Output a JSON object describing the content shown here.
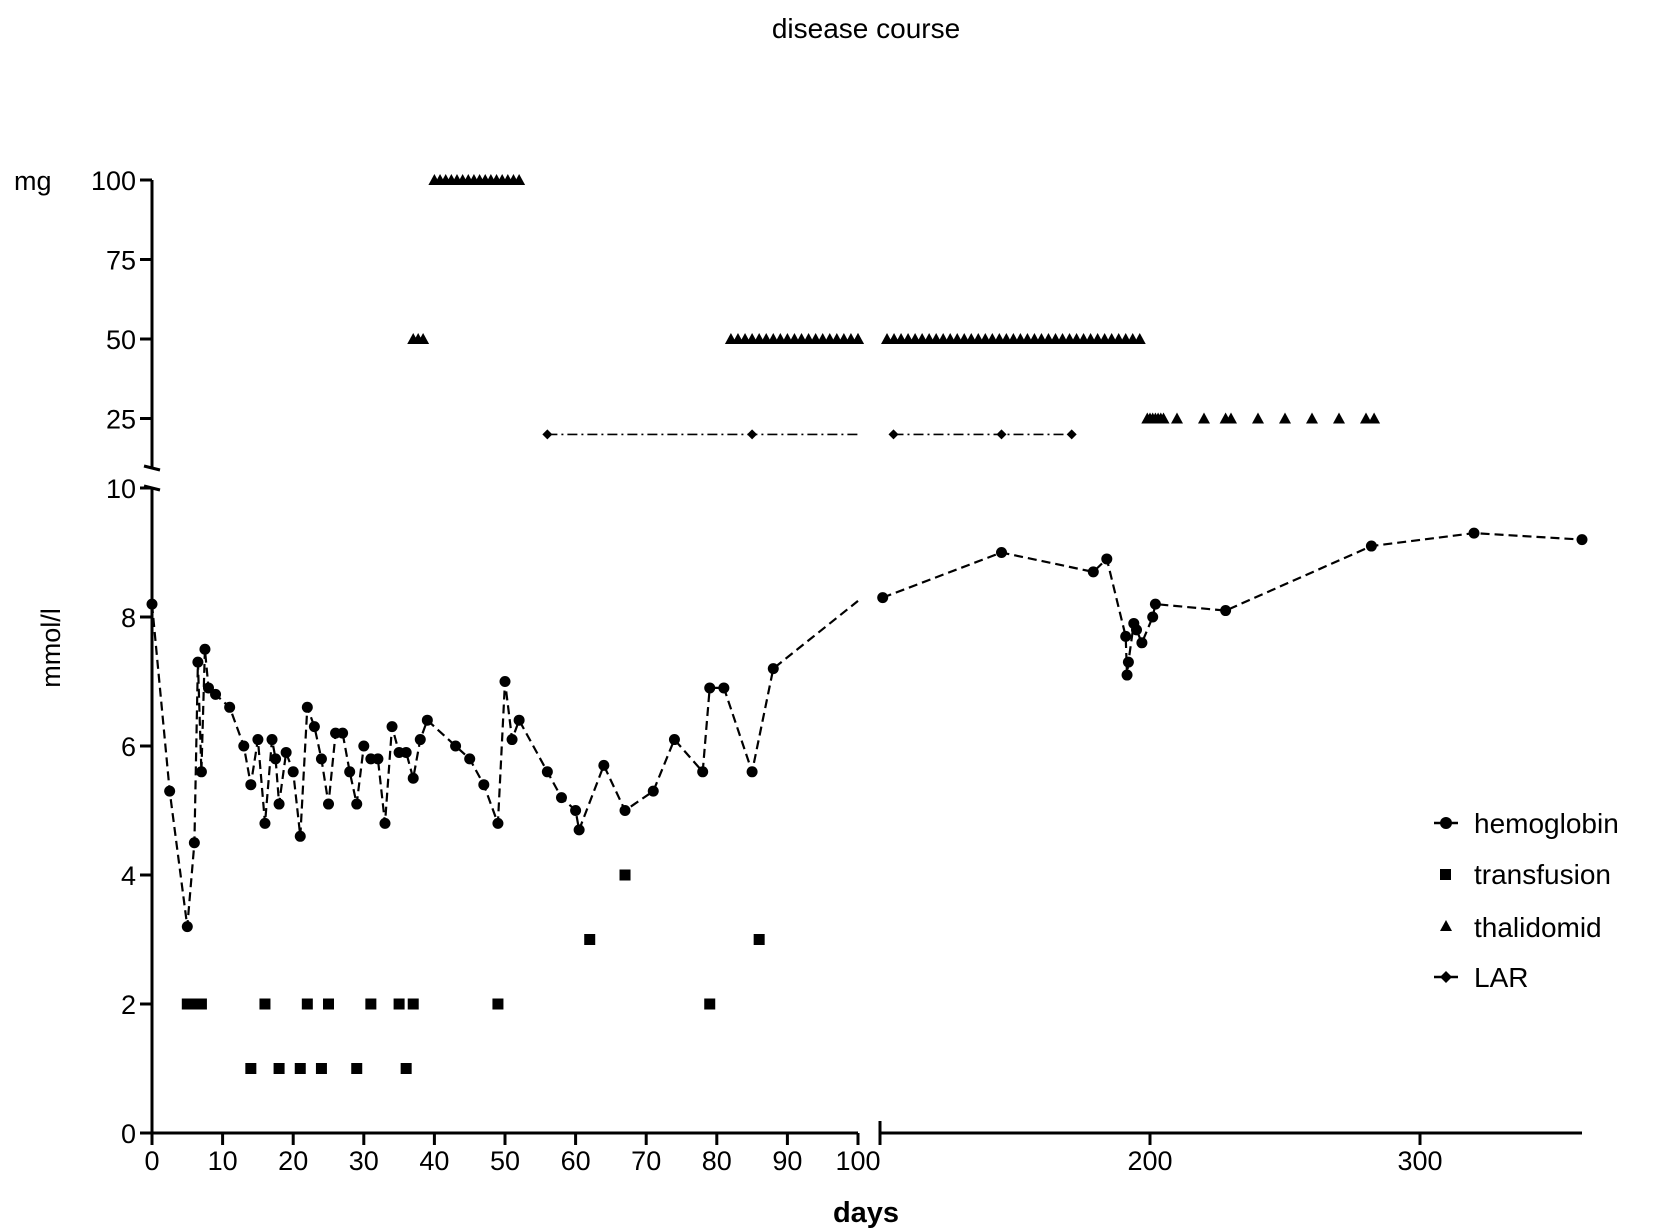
{
  "chart_data": {
    "type": "scatter",
    "title": "disease course",
    "xlabel": "days",
    "x_axis": {
      "segment1": {
        "range": [
          0,
          100
        ],
        "ticks": [
          0,
          10,
          20,
          30,
          40,
          50,
          60,
          70,
          80,
          90,
          100
        ]
      },
      "segment2": {
        "range": [
          100,
          360
        ],
        "ticks": [
          100,
          200,
          300
        ]
      }
    },
    "upper_panel": {
      "unit_label": "mg",
      "ylim": [
        15,
        100
      ],
      "ticks": [
        25,
        50,
        75,
        100
      ]
    },
    "lower_panel": {
      "ylabel": "mmol/l",
      "ylim": [
        0,
        10
      ],
      "ticks": [
        0,
        2,
        4,
        6,
        8,
        10
      ]
    },
    "legend": {
      "placement": "right",
      "entries": [
        "hemoglobin",
        "transfusion",
        "thalidomid",
        "LAR"
      ]
    },
    "series": [
      {
        "name": "hemoglobin",
        "panel": "lower",
        "marker": "circle",
        "line": "dashed",
        "points": [
          [
            0,
            8.2
          ],
          [
            2.5,
            5.3
          ],
          [
            5,
            3.2
          ],
          [
            6,
            4.5
          ],
          [
            6.5,
            7.3
          ],
          [
            7,
            5.6
          ],
          [
            7.5,
            7.5
          ],
          [
            8,
            6.9
          ],
          [
            9,
            6.8
          ],
          [
            11,
            6.6
          ],
          [
            13,
            6.0
          ],
          [
            14,
            5.4
          ],
          [
            15,
            6.1
          ],
          [
            16,
            4.8
          ],
          [
            17,
            6.1
          ],
          [
            17.5,
            5.8
          ],
          [
            18,
            5.1
          ],
          [
            19,
            5.9
          ],
          [
            20,
            5.6
          ],
          [
            21,
            4.6
          ],
          [
            22,
            6.6
          ],
          [
            23,
            6.3
          ],
          [
            24,
            5.8
          ],
          [
            25,
            5.1
          ],
          [
            26,
            6.2
          ],
          [
            27,
            6.2
          ],
          [
            28,
            5.6
          ],
          [
            29,
            5.1
          ],
          [
            30,
            6.0
          ],
          [
            31,
            5.8
          ],
          [
            32,
            5.8
          ],
          [
            33,
            4.8
          ],
          [
            34,
            6.3
          ],
          [
            35,
            5.9
          ],
          [
            36,
            5.9
          ],
          [
            37,
            5.5
          ],
          [
            38,
            6.1
          ],
          [
            39,
            6.4
          ],
          [
            43,
            6.0
          ],
          [
            45,
            5.8
          ],
          [
            47,
            5.4
          ],
          [
            49,
            4.8
          ],
          [
            50,
            7.0
          ],
          [
            51,
            6.1
          ],
          [
            52,
            6.4
          ],
          [
            56,
            5.6
          ],
          [
            58,
            5.2
          ],
          [
            60,
            5.0
          ],
          [
            60.5,
            4.7
          ],
          [
            64,
            5.7
          ],
          [
            67,
            5.0
          ],
          [
            71,
            5.3
          ],
          [
            74,
            6.1
          ],
          [
            78,
            5.6
          ],
          [
            79,
            6.9
          ],
          [
            81,
            6.9
          ],
          [
            85,
            5.6
          ],
          [
            88,
            7.2
          ],
          [
            100,
            8.25
          ],
          [
            101,
            8.3
          ],
          [
            145,
            9.0
          ],
          [
            179,
            8.7
          ],
          [
            184,
            8.9
          ],
          [
            191,
            7.7
          ],
          [
            191.5,
            7.1
          ],
          [
            192,
            7.3
          ],
          [
            194,
            7.9
          ],
          [
            195,
            7.8
          ],
          [
            197,
            7.6
          ],
          [
            201,
            8.0
          ],
          [
            202,
            8.2
          ],
          [
            228,
            8.1
          ],
          [
            282,
            9.1
          ],
          [
            320,
            9.3
          ],
          [
            360,
            9.2
          ]
        ]
      },
      {
        "name": "transfusion",
        "panel": "lower",
        "marker": "square",
        "points": [
          [
            5,
            2
          ],
          [
            6,
            2
          ],
          [
            7,
            2
          ],
          [
            14,
            1
          ],
          [
            16,
            2
          ],
          [
            18,
            1
          ],
          [
            21,
            1
          ],
          [
            22,
            2
          ],
          [
            24,
            1
          ],
          [
            25,
            2
          ],
          [
            29,
            1
          ],
          [
            31,
            2
          ],
          [
            35,
            2
          ],
          [
            36,
            1
          ],
          [
            37,
            2
          ],
          [
            49,
            2
          ],
          [
            62,
            3
          ],
          [
            67,
            4
          ],
          [
            79,
            2
          ],
          [
            86,
            3
          ]
        ]
      },
      {
        "name": "thalidomid",
        "panel": "upper",
        "marker": "triangle",
        "runs": [
          {
            "from": 37,
            "to": 39,
            "step": 0.7,
            "value": 50
          },
          {
            "from": 40,
            "to": 52,
            "step": 0.8,
            "value": 100
          },
          {
            "from": 82,
            "to": 100,
            "step": 1,
            "value": 50
          },
          {
            "from": 100,
            "to": 198,
            "step": 2.6,
            "value": 50
          }
        ],
        "points": [
          [
            199,
            25
          ],
          [
            200,
            25
          ],
          [
            201,
            25
          ],
          [
            202,
            25
          ],
          [
            203,
            25
          ],
          [
            204,
            25
          ],
          [
            205,
            25
          ],
          [
            210,
            25
          ],
          [
            220,
            25
          ],
          [
            228,
            25
          ],
          [
            230,
            25
          ],
          [
            240,
            25
          ],
          [
            250,
            25
          ],
          [
            260,
            25
          ],
          [
            270,
            25
          ],
          [
            280,
            25
          ],
          [
            283,
            25
          ]
        ]
      },
      {
        "name": "LAR",
        "panel": "upper",
        "marker": "diamond",
        "line": "dash-dot",
        "points": [
          [
            56,
            20
          ],
          [
            85,
            20
          ],
          [
            100,
            20
          ],
          [
            105,
            20
          ],
          [
            145,
            20
          ],
          [
            171,
            20
          ]
        ]
      }
    ]
  }
}
